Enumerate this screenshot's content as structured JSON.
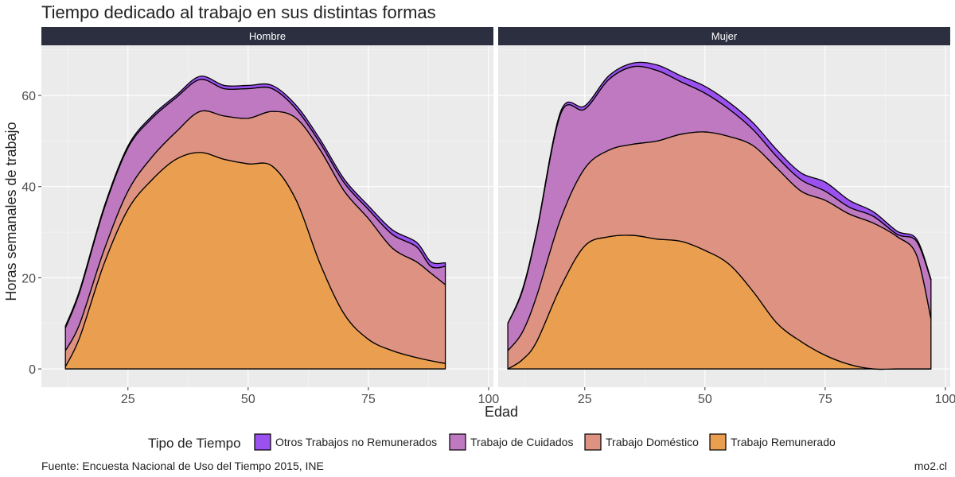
{
  "title": "Tiempo dedicado al trabajo en sus distintas formas",
  "caption": {
    "source": "Fuente: Encuesta Nacional de Uso del Tiempo 2015, INE",
    "credit": "mo2.cl"
  },
  "colors": {
    "Otros Trabajos no Remunerados": "#9b51f0",
    "Trabajo de Cuidados": "#bf79c0",
    "Trabajo Doméstico": "#dd9282",
    "Trabajo Remunerado": "#ea9e4f",
    "strip": "#2b2f3f",
    "panel": "#ebebeb"
  },
  "chart_data": {
    "type": "area",
    "stacked": true,
    "facets": [
      "Hombre",
      "Mujer"
    ],
    "xlabel": "Edad",
    "ylabel": "Horas semanales de trabajo",
    "xlim": [
      7,
      101
    ],
    "ylim": [
      -4,
      71
    ],
    "xticks": [
      25,
      50,
      75,
      100
    ],
    "yticks": [
      0,
      20,
      40,
      60
    ],
    "grid": true,
    "legend": {
      "title": "Tipo de Tiempo",
      "position": "bottom",
      "entries": [
        "Otros Trabajos no Remunerados",
        "Trabajo de Cuidados",
        "Trabajo Doméstico",
        "Trabajo Remunerado"
      ]
    },
    "panels": [
      {
        "facet": "Hombre",
        "x": [
          12,
          15,
          20,
          25,
          30,
          35,
          40,
          45,
          50,
          55,
          60,
          65,
          70,
          75,
          80,
          85,
          88,
          91
        ],
        "series": [
          {
            "name": "Trabajo Remunerado",
            "values": [
              0.5,
              7,
              23,
              35,
              41.5,
              46,
              47.5,
              46,
              45,
              44.5,
              37,
              23,
              12,
              6.5,
              4,
              2.5,
              1.8,
              1.2
            ]
          },
          {
            "name": "Trabajo Doméstico",
            "values": [
              3.5,
              3,
              3,
              4,
              5,
              6,
              9,
              9.5,
              10,
              12,
              18,
              25,
              27,
              26.5,
              22.5,
              21,
              19.2,
              17.3
            ]
          },
          {
            "name": "Trabajo de Cuidados",
            "values": [
              5,
              7,
              9,
              9.5,
              8.5,
              7.5,
              7,
              6,
              6.5,
              5,
              2,
              1.5,
              1.8,
              2,
              3,
              3.3,
              1.5,
              4
            ]
          },
          {
            "name": "Otros Trabajos no Remunerados",
            "values": [
              0.4,
              0.4,
              0.4,
              0.4,
              0.5,
              0.5,
              0.7,
              0.7,
              0.7,
              0.7,
              0.8,
              0.8,
              0.8,
              0.8,
              1,
              1,
              1,
              0.8
            ]
          }
        ]
      },
      {
        "facet": "Mujer",
        "x": [
          9,
          12,
          15,
          20,
          25,
          30,
          35,
          40,
          45,
          50,
          55,
          60,
          65,
          70,
          75,
          80,
          85,
          90,
          94,
          97
        ],
        "series": [
          {
            "name": "Trabajo Remunerado",
            "values": [
              0,
              2,
              6,
              18,
              27,
              29,
              29.3,
              28.5,
              28,
              26,
              23,
              17,
              10,
              6,
              3,
              1,
              0,
              0,
              0,
              0
            ]
          },
          {
            "name": "Trabajo Doméstico",
            "values": [
              4,
              6,
              10,
              15,
              17,
              19,
              20,
              21.5,
              23.5,
              26,
              28,
              32,
              34,
              33,
              34,
              33,
              32,
              29,
              25,
              11
            ]
          },
          {
            "name": "Trabajo de Cuidados",
            "values": [
              6,
              9,
              14,
              23,
              13,
              15.5,
              17,
              15.5,
              11.5,
              8.5,
              6,
              3.5,
              2.5,
              2.5,
              2,
              1.5,
              1.5,
              0.5,
              3,
              8.5
            ]
          },
          {
            "name": "Otros Trabajos no Remunerados",
            "values": [
              0,
              0.3,
              0.3,
              0.5,
              0.7,
              0.8,
              0.8,
              1.2,
              1.3,
              1.5,
              1.5,
              1.5,
              1.5,
              1.5,
              2,
              1.5,
              1,
              0.7,
              0.5,
              0.2
            ]
          }
        ]
      }
    ]
  }
}
